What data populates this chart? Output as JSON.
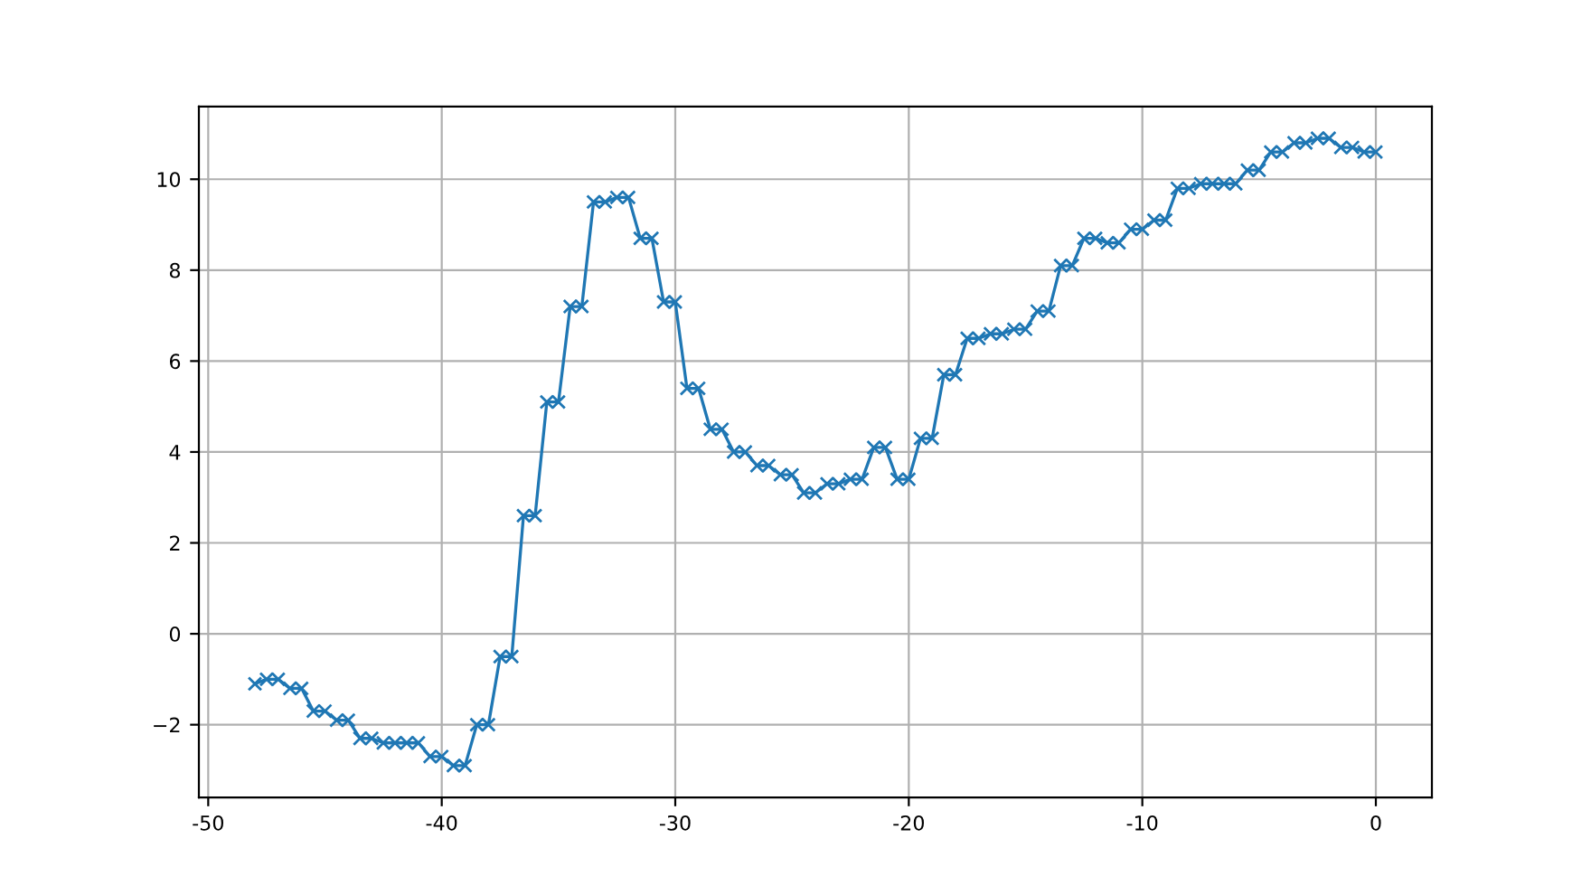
{
  "chart_data": {
    "type": "line",
    "marker": "cross",
    "line_style": "solid",
    "grid": true,
    "x": [
      -48,
      -47.5,
      -47,
      -46.5,
      -46,
      -45.5,
      -45,
      -44.5,
      -44,
      -43.5,
      -43,
      -42.5,
      -42,
      -41.5,
      -41,
      -40.5,
      -40,
      -39.5,
      -39,
      -38.5,
      -38,
      -37.5,
      -37,
      -36.5,
      -36,
      -35.5,
      -35,
      -34.5,
      -34,
      -33.5,
      -33,
      -32.5,
      -32,
      -31.5,
      -31,
      -30.5,
      -30,
      -29.5,
      -29,
      -28.5,
      -28,
      -27.5,
      -27,
      -26.5,
      -26,
      -25.5,
      -25,
      -24.5,
      -24,
      -23.5,
      -23,
      -22.5,
      -22,
      -21.5,
      -21,
      -20.5,
      -20,
      -19.5,
      -19,
      -18.5,
      -18,
      -17.5,
      -17,
      -16.5,
      -16,
      -15.5,
      -15,
      -14.5,
      -14,
      -13.5,
      -13,
      -12.5,
      -12,
      -11.5,
      -11,
      -10.5,
      -10,
      -9.5,
      -9,
      -8.5,
      -8,
      -7.5,
      -7,
      -6.5,
      -6,
      -5.5,
      -5,
      -4.5,
      -4,
      -3.5,
      -3,
      -2.5,
      -2,
      -1.5,
      -1,
      -0.5,
      0
    ],
    "series": [
      {
        "color": "#1f77b4",
        "values": [
          -1.1,
          -1.0,
          -1.0,
          -1.2,
          -1.2,
          -1.7,
          -1.7,
          -1.9,
          -1.9,
          -2.3,
          -2.3,
          -2.4,
          -2.4,
          -2.4,
          -2.4,
          -2.7,
          -2.7,
          -2.9,
          -2.9,
          -2.0,
          -2.0,
          -0.5,
          -0.5,
          2.6,
          2.6,
          5.1,
          5.1,
          7.2,
          7.2,
          9.5,
          9.5,
          9.6,
          9.6,
          8.7,
          8.7,
          7.3,
          7.3,
          5.4,
          5.4,
          4.5,
          4.5,
          4.0,
          4.0,
          3.7,
          3.7,
          3.5,
          3.5,
          3.1,
          3.1,
          3.3,
          3.3,
          3.4,
          3.4,
          4.1,
          4.1,
          3.4,
          3.4,
          4.3,
          4.3,
          5.7,
          5.7,
          6.5,
          6.5,
          6.6,
          6.6,
          6.7,
          6.7,
          7.1,
          7.1,
          8.1,
          8.1,
          8.7,
          8.7,
          8.6,
          8.6,
          8.9,
          8.9,
          9.1,
          9.1,
          9.8,
          9.8,
          9.9,
          9.9,
          9.9,
          9.9,
          10.2,
          10.2,
          10.6,
          10.6,
          10.8,
          10.8,
          10.9,
          10.9,
          10.7,
          10.7,
          10.6,
          10.6
        ]
      }
    ],
    "xlim": [
      -50.4,
      2.4
    ],
    "ylim": [
      -3.6,
      11.6
    ],
    "xticks": [
      -50,
      -40,
      -30,
      -20,
      -10,
      0
    ],
    "yticks": [
      {
        "value": -2,
        "label": "−2"
      },
      0,
      2,
      4,
      6,
      8,
      10
    ]
  }
}
